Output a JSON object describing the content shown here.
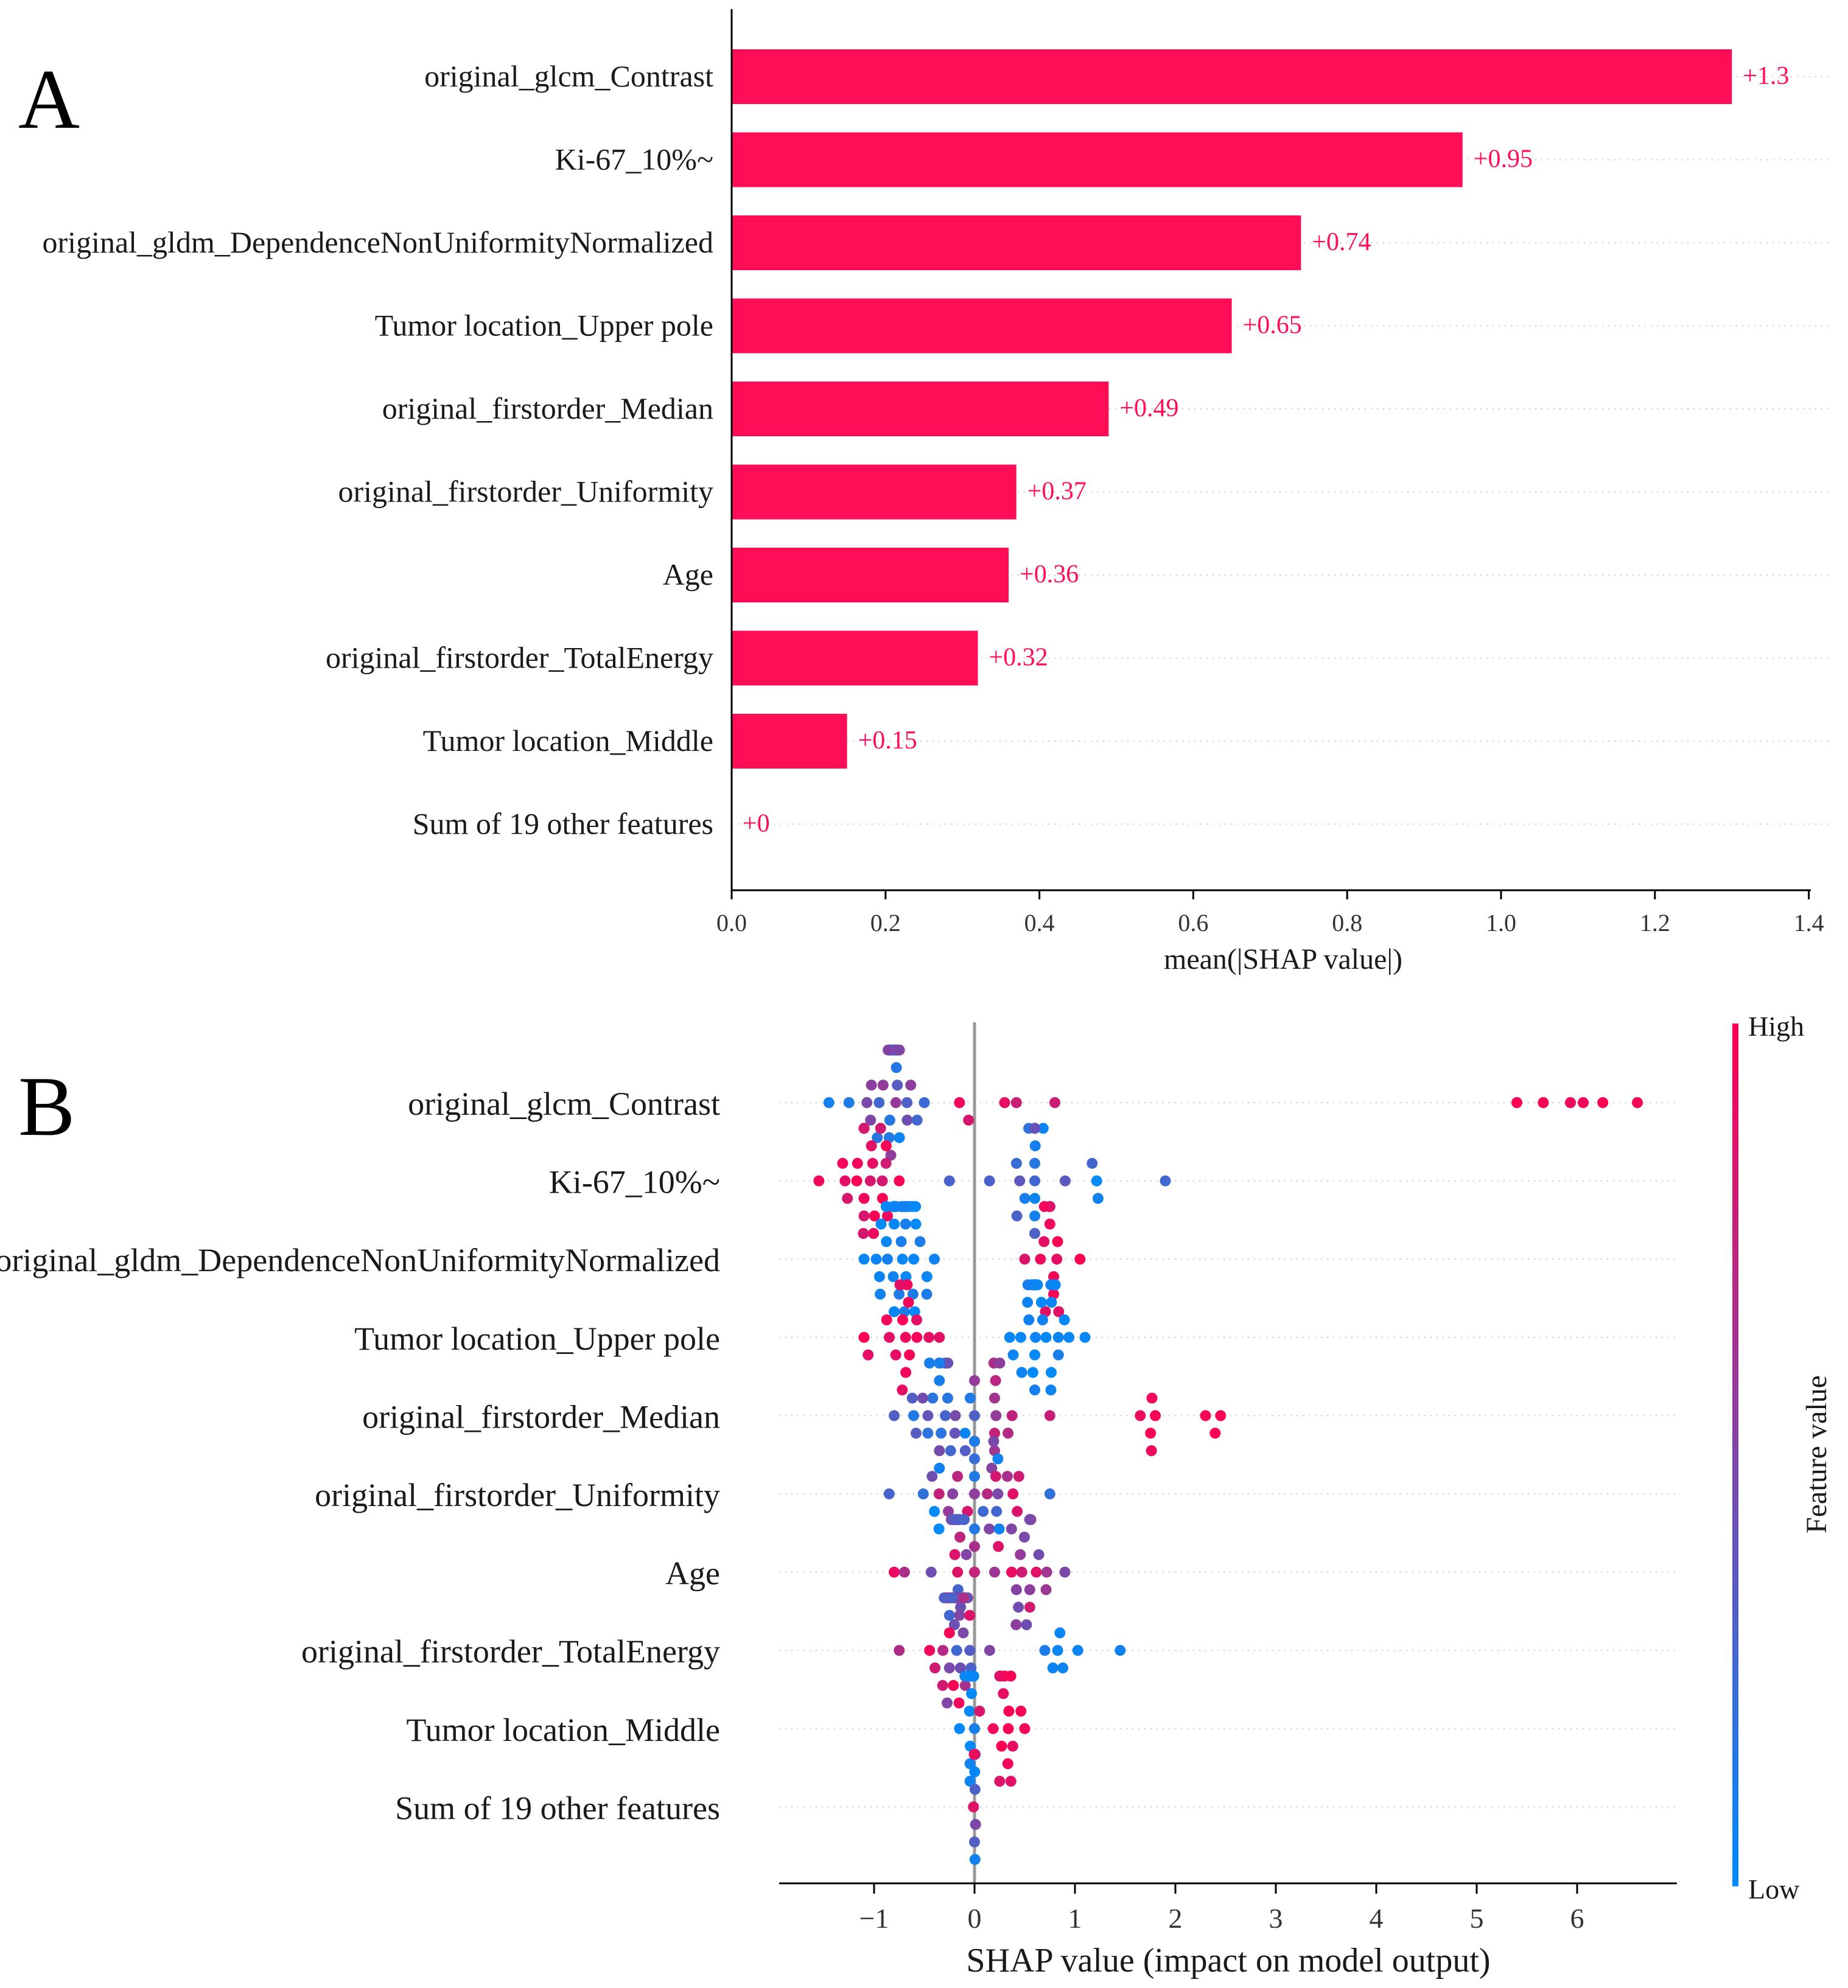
{
  "colors": {
    "high": "#ff0052",
    "low": "#008bfb",
    "bar": "#ff0d57",
    "value_label": "#ff0d57",
    "axis": "#000000",
    "zero_line": "#999999",
    "grid": "#cccccc"
  },
  "features": [
    "original_glcm_Contrast",
    "Ki-67_10%~",
    "original_gldm_DependenceNonUniformityNormalized",
    "Tumor location_Upper pole",
    "original_firstorder_Median",
    "original_firstorder_Uniformity",
    "Age",
    "original_firstorder_TotalEnergy",
    "Tumor location_Middle",
    "Sum of 19 other features"
  ],
  "chart_data": [
    {
      "panel": "A",
      "type": "bar",
      "orientation": "horizontal",
      "xlabel": "mean(|SHAP value|)",
      "xlim": [
        0,
        1.44
      ],
      "xticks": [
        "0.0",
        "0.2",
        "0.4",
        "0.6",
        "0.8",
        "1.0",
        "1.2",
        "1.4"
      ],
      "values": [
        1.3,
        0.95,
        0.74,
        0.65,
        0.49,
        0.37,
        0.36,
        0.32,
        0.15,
        0
      ],
      "value_labels": [
        "+1.3",
        "+0.95",
        "+0.74",
        "+0.65",
        "+0.49",
        "+0.37",
        "+0.36",
        "+0.32",
        "+0.15",
        "+0"
      ]
    },
    {
      "panel": "B",
      "type": "scatter",
      "subtype": "beeswarm",
      "xlabel": "SHAP value (impact on model output)",
      "xlim": [
        -1.95,
        7.0
      ],
      "xticks": [
        "−1",
        "0",
        "1",
        "2",
        "3",
        "4",
        "5",
        "6"
      ],
      "colorbar": {
        "label": "Feature value",
        "high": "High",
        "low": "Low"
      },
      "series": [
        {
          "feature": "original_glcm_Contrast",
          "clusters": [
            {
              "min": -1.45,
              "max": -0.5,
              "center": -0.85,
              "n": 36,
              "fmin": 0.05,
              "fmax": 0.6
            },
            {
              "min": -0.15,
              "max": 0.8,
              "center": 0.3,
              "n": 5,
              "fmin": 0.75,
              "fmax": 0.95
            },
            {
              "min": 5.4,
              "max": 6.6,
              "center": 5.9,
              "n": 6,
              "fmin": 0.92,
              "fmax": 1.0
            }
          ]
        },
        {
          "feature": "Ki-67_10%~",
          "clusters": [
            {
              "min": -1.55,
              "max": -0.75,
              "center": -1.1,
              "n": 24,
              "fmin": 0.8,
              "fmax": 1.0
            },
            {
              "min": -0.25,
              "max": 1.9,
              "center": 0.6,
              "n": 22,
              "fmin": 0.0,
              "fmax": 0.45
            }
          ]
        },
        {
          "feature": "original_gldm_DependenceNonUniformityNormalized",
          "clusters": [
            {
              "min": -1.1,
              "max": -0.4,
              "center": -0.8,
              "n": 38,
              "fmin": 0.0,
              "fmax": 0.12
            },
            {
              "min": 0.5,
              "max": 1.05,
              "center": 0.75,
              "n": 16,
              "fmin": 0.85,
              "fmax": 1.0
            }
          ]
        },
        {
          "feature": "Tumor location_Upper pole",
          "clusters": [
            {
              "min": -1.1,
              "max": -0.35,
              "center": -0.75,
              "n": 18,
              "fmin": 0.88,
              "fmax": 1.0
            },
            {
              "min": 0.35,
              "max": 1.1,
              "center": 0.6,
              "n": 42,
              "fmin": 0.0,
              "fmax": 0.1
            }
          ]
        },
        {
          "feature": "original_firstorder_Median",
          "clusters": [
            {
              "min": -0.8,
              "max": 0.0,
              "center": -0.35,
              "n": 30,
              "fmin": 0.0,
              "fmax": 0.5
            },
            {
              "min": 0.0,
              "max": 0.75,
              "center": 0.2,
              "n": 12,
              "fmin": 0.5,
              "fmax": 0.8
            },
            {
              "min": 1.65,
              "max": 1.8,
              "center": 1.72,
              "n": 5,
              "fmin": 0.92,
              "fmax": 1.0
            },
            {
              "min": 2.3,
              "max": 2.45,
              "center": 2.38,
              "n": 3,
              "fmin": 0.92,
              "fmax": 1.0
            }
          ]
        },
        {
          "feature": "original_firstorder_Uniformity",
          "clusters": [
            {
              "min": -0.85,
              "max": 0.75,
              "center": 0.0,
              "n": 34,
              "fmin": 0.0,
              "fmax": 1.0
            }
          ]
        },
        {
          "feature": "Age",
          "clusters": [
            {
              "min": -0.8,
              "max": 0.0,
              "center": -0.2,
              "n": 26,
              "fmin": 0.0,
              "fmax": 1.0
            },
            {
              "min": 0.2,
              "max": 0.9,
              "center": 0.55,
              "n": 20,
              "fmin": 0.35,
              "fmax": 0.95
            }
          ]
        },
        {
          "feature": "original_firstorder_TotalEnergy",
          "clusters": [
            {
              "min": -0.75,
              "max": 0.15,
              "center": -0.25,
              "n": 34,
              "fmin": 0.25,
              "fmax": 1.0
            },
            {
              "min": 0.7,
              "max": 1.45,
              "center": 0.85,
              "n": 7,
              "fmin": 0.0,
              "fmax": 0.12
            }
          ]
        },
        {
          "feature": "Tumor location_Middle",
          "clusters": [
            {
              "min": -0.15,
              "max": 0.0,
              "center": -0.05,
              "n": 22,
              "fmin": 0.0,
              "fmax": 0.1
            },
            {
              "min": 0.05,
              "max": 0.5,
              "center": 0.25,
              "n": 16,
              "fmin": 0.85,
              "fmax": 1.0
            }
          ]
        },
        {
          "feature": "Sum of 19 other features",
          "clusters": [
            {
              "min": -0.01,
              "max": 0.01,
              "center": 0.0,
              "n": 26,
              "fmin": 0.0,
              "fmax": 1.0
            }
          ]
        }
      ]
    }
  ],
  "panels": {
    "a": "A",
    "b": "B"
  }
}
